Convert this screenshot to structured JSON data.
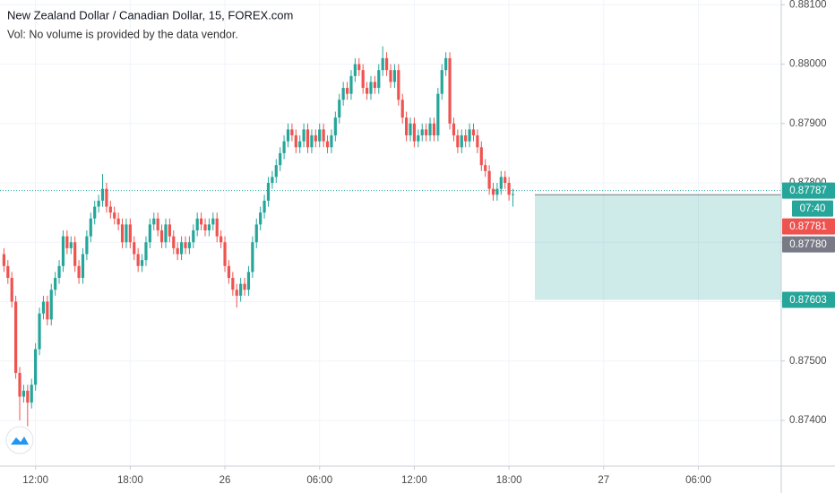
{
  "chart_data": {
    "type": "candlestick",
    "title": "New Zealand Dollar / Canadian Dollar, 15, FOREX.com",
    "subtitle": "Vol: No volume is provided by the data vendor.",
    "up_color": "#26a69a",
    "down_color": "#ef5350",
    "grid": true,
    "xlim": [
      -1,
      197
    ],
    "xticks": [
      {
        "value": 8,
        "label": "12:00"
      },
      {
        "value": 32,
        "label": "18:00"
      },
      {
        "value": 56,
        "label": "26"
      },
      {
        "value": 80,
        "label": "06:00"
      },
      {
        "value": 104,
        "label": "12:00"
      },
      {
        "value": 128,
        "label": "18:00"
      },
      {
        "value": 152,
        "label": "27"
      },
      {
        "value": 176,
        "label": "06:00"
      }
    ],
    "ylim": [
      0.87323,
      0.88108
    ],
    "yticks": [
      {
        "value": 0.874,
        "label": "0.87400"
      },
      {
        "value": 0.875,
        "label": "0.87500"
      },
      {
        "value": 0.876,
        "label": "0.87600"
      },
      {
        "value": 0.877,
        "label": "0.87700"
      },
      {
        "value": 0.878,
        "label": "0.87800"
      },
      {
        "value": 0.879,
        "label": "0.87900"
      },
      {
        "value": 0.88,
        "label": "0.88000"
      },
      {
        "value": 0.881,
        "label": "0.88100"
      }
    ],
    "candles": [
      [
        0.8768,
        0.8769,
        0.8765,
        0.8766
      ],
      [
        0.8766,
        0.8767,
        0.8763,
        0.8764
      ],
      [
        0.8764,
        0.8765,
        0.8759,
        0.876
      ],
      [
        0.876,
        0.8761,
        0.8747,
        0.8748
      ],
      [
        0.8748,
        0.8749,
        0.874,
        0.8744
      ],
      [
        0.8744,
        0.8746,
        0.8743,
        0.8745
      ],
      [
        0.8745,
        0.8746,
        0.8739,
        0.8743
      ],
      [
        0.8743,
        0.8747,
        0.8742,
        0.8746
      ],
      [
        0.8746,
        0.8753,
        0.8745,
        0.8752
      ],
      [
        0.8752,
        0.8759,
        0.8751,
        0.8758
      ],
      [
        0.8758,
        0.8761,
        0.8757,
        0.876
      ],
      [
        0.876,
        0.8761,
        0.8756,
        0.8757
      ],
      [
        0.8757,
        0.8763,
        0.8756,
        0.8762
      ],
      [
        0.8762,
        0.8765,
        0.8761,
        0.8764
      ],
      [
        0.8764,
        0.8767,
        0.8763,
        0.8766
      ],
      [
        0.8766,
        0.8772,
        0.8765,
        0.8771
      ],
      [
        0.8771,
        0.8772,
        0.8768,
        0.8769
      ],
      [
        0.8769,
        0.8771,
        0.8768,
        0.877
      ],
      [
        0.877,
        0.8771,
        0.8765,
        0.8766
      ],
      [
        0.8766,
        0.8767,
        0.8763,
        0.8764
      ],
      [
        0.8764,
        0.8769,
        0.8763,
        0.8768
      ],
      [
        0.8768,
        0.8772,
        0.8767,
        0.8771
      ],
      [
        0.8771,
        0.8775,
        0.877,
        0.8774
      ],
      [
        0.8774,
        0.8777,
        0.8773,
        0.8776
      ],
      [
        0.8776,
        0.8778,
        0.8775,
        0.8777
      ],
      [
        0.8777,
        0.87815,
        0.8776,
        0.8779
      ],
      [
        0.8779,
        0.878,
        0.8775,
        0.8776
      ],
      [
        0.8776,
        0.8777,
        0.8774,
        0.8775
      ],
      [
        0.8775,
        0.8776,
        0.8773,
        0.8774
      ],
      [
        0.8774,
        0.8775,
        0.8772,
        0.8773
      ],
      [
        0.8773,
        0.8774,
        0.8769,
        0.877
      ],
      [
        0.877,
        0.8774,
        0.8769,
        0.8773
      ],
      [
        0.8773,
        0.8774,
        0.8769,
        0.877
      ],
      [
        0.877,
        0.8771,
        0.8767,
        0.8768
      ],
      [
        0.8768,
        0.8769,
        0.8765,
        0.8766
      ],
      [
        0.8766,
        0.8768,
        0.8765,
        0.8767
      ],
      [
        0.8767,
        0.8771,
        0.8766,
        0.877
      ],
      [
        0.877,
        0.8774,
        0.8769,
        0.8773
      ],
      [
        0.8773,
        0.8775,
        0.8772,
        0.8774
      ],
      [
        0.8774,
        0.8775,
        0.8771,
        0.8772
      ],
      [
        0.8772,
        0.8773,
        0.8769,
        0.877
      ],
      [
        0.877,
        0.8774,
        0.8769,
        0.8773
      ],
      [
        0.8773,
        0.8774,
        0.877,
        0.8771
      ],
      [
        0.8771,
        0.8772,
        0.8768,
        0.8769
      ],
      [
        0.8769,
        0.877,
        0.8767,
        0.8768
      ],
      [
        0.8768,
        0.8771,
        0.8767,
        0.877
      ],
      [
        0.877,
        0.8771,
        0.8768,
        0.8769
      ],
      [
        0.8769,
        0.8771,
        0.8768,
        0.877
      ],
      [
        0.877,
        0.8773,
        0.8769,
        0.8772
      ],
      [
        0.8772,
        0.8775,
        0.8771,
        0.8774
      ],
      [
        0.8774,
        0.8775,
        0.8772,
        0.8773
      ],
      [
        0.8773,
        0.8774,
        0.8771,
        0.8772
      ],
      [
        0.8772,
        0.8774,
        0.8771,
        0.8773
      ],
      [
        0.8773,
        0.8775,
        0.8772,
        0.8774
      ],
      [
        0.8774,
        0.8775,
        0.877,
        0.8771
      ],
      [
        0.8771,
        0.8772,
        0.8769,
        0.877
      ],
      [
        0.877,
        0.8771,
        0.8765,
        0.8766
      ],
      [
        0.8766,
        0.8767,
        0.8763,
        0.8764
      ],
      [
        0.8764,
        0.8765,
        0.8761,
        0.8762
      ],
      [
        0.8762,
        0.8763,
        0.8759,
        0.8761
      ],
      [
        0.8761,
        0.8764,
        0.876,
        0.8763
      ],
      [
        0.8763,
        0.8764,
        0.8761,
        0.8762
      ],
      [
        0.8762,
        0.8766,
        0.8761,
        0.8765
      ],
      [
        0.8765,
        0.8771,
        0.8764,
        0.877
      ],
      [
        0.877,
        0.8774,
        0.8769,
        0.8773
      ],
      [
        0.8773,
        0.8776,
        0.8772,
        0.8775
      ],
      [
        0.8775,
        0.8778,
        0.8774,
        0.8777
      ],
      [
        0.8777,
        0.8781,
        0.8776,
        0.878
      ],
      [
        0.878,
        0.8782,
        0.8779,
        0.8781
      ],
      [
        0.8781,
        0.8784,
        0.878,
        0.8783
      ],
      [
        0.8783,
        0.8786,
        0.8782,
        0.8785
      ],
      [
        0.8785,
        0.8788,
        0.8784,
        0.8787
      ],
      [
        0.8787,
        0.879,
        0.8786,
        0.8789
      ],
      [
        0.8789,
        0.879,
        0.8787,
        0.8788
      ],
      [
        0.8788,
        0.8789,
        0.8785,
        0.8786
      ],
      [
        0.8786,
        0.8788,
        0.8785,
        0.8787
      ],
      [
        0.8787,
        0.879,
        0.8786,
        0.8789
      ],
      [
        0.8789,
        0.879,
        0.8785,
        0.8786
      ],
      [
        0.8786,
        0.8789,
        0.8785,
        0.8788
      ],
      [
        0.8788,
        0.8789,
        0.8786,
        0.8787
      ],
      [
        0.8787,
        0.879,
        0.8786,
        0.8789
      ],
      [
        0.8789,
        0.879,
        0.8786,
        0.8787
      ],
      [
        0.8787,
        0.8788,
        0.8785,
        0.8786
      ],
      [
        0.8786,
        0.8789,
        0.8785,
        0.8788
      ],
      [
        0.8788,
        0.8792,
        0.8787,
        0.8791
      ],
      [
        0.8791,
        0.8795,
        0.879,
        0.8794
      ],
      [
        0.8794,
        0.8797,
        0.8793,
        0.8796
      ],
      [
        0.8796,
        0.8797,
        0.8794,
        0.8795
      ],
      [
        0.8795,
        0.8799,
        0.8794,
        0.8798
      ],
      [
        0.8798,
        0.8801,
        0.8797,
        0.88
      ],
      [
        0.88,
        0.8801,
        0.8798,
        0.8799
      ],
      [
        0.8799,
        0.88,
        0.8795,
        0.8796
      ],
      [
        0.8796,
        0.8797,
        0.8794,
        0.8795
      ],
      [
        0.8795,
        0.8798,
        0.8794,
        0.8797
      ],
      [
        0.8797,
        0.8798,
        0.8795,
        0.8796
      ],
      [
        0.8796,
        0.88,
        0.8795,
        0.8799
      ],
      [
        0.8799,
        0.8803,
        0.8798,
        0.8801
      ],
      [
        0.8801,
        0.8802,
        0.8798,
        0.8799
      ],
      [
        0.8799,
        0.88,
        0.8796,
        0.8797
      ],
      [
        0.8797,
        0.88,
        0.8796,
        0.8799
      ],
      [
        0.8799,
        0.88,
        0.8793,
        0.8794
      ],
      [
        0.8794,
        0.8795,
        0.879,
        0.8791
      ],
      [
        0.8791,
        0.8792,
        0.8787,
        0.8788
      ],
      [
        0.8788,
        0.8791,
        0.8787,
        0.879
      ],
      [
        0.879,
        0.8791,
        0.8786,
        0.8787
      ],
      [
        0.8787,
        0.8789,
        0.8786,
        0.8788
      ],
      [
        0.8788,
        0.879,
        0.8787,
        0.8789
      ],
      [
        0.8789,
        0.879,
        0.8787,
        0.8788
      ],
      [
        0.8788,
        0.8791,
        0.8787,
        0.879
      ],
      [
        0.879,
        0.8791,
        0.8787,
        0.8788
      ],
      [
        0.8788,
        0.8796,
        0.8787,
        0.8795
      ],
      [
        0.8795,
        0.88,
        0.8794,
        0.8799
      ],
      [
        0.8799,
        0.8802,
        0.8798,
        0.8801
      ],
      [
        0.8801,
        0.8802,
        0.8789,
        0.879
      ],
      [
        0.879,
        0.8791,
        0.8787,
        0.8788
      ],
      [
        0.8788,
        0.8789,
        0.8785,
        0.8786
      ],
      [
        0.8786,
        0.8789,
        0.8785,
        0.8788
      ],
      [
        0.8788,
        0.8789,
        0.8786,
        0.8787
      ],
      [
        0.8787,
        0.879,
        0.8786,
        0.8789
      ],
      [
        0.8789,
        0.879,
        0.8787,
        0.8788
      ],
      [
        0.8788,
        0.8789,
        0.8785,
        0.8786
      ],
      [
        0.8786,
        0.8787,
        0.8782,
        0.8783
      ],
      [
        0.8783,
        0.8784,
        0.8781,
        0.8782
      ],
      [
        0.8782,
        0.8783,
        0.8778,
        0.8779
      ],
      [
        0.8779,
        0.878,
        0.8777,
        0.8778
      ],
      [
        0.8778,
        0.878,
        0.8777,
        0.8779
      ],
      [
        0.8779,
        0.8782,
        0.8778,
        0.8781
      ],
      [
        0.8781,
        0.8782,
        0.8779,
        0.878
      ],
      [
        0.878,
        0.8781,
        0.8777,
        0.8778
      ],
      [
        0.8778,
        0.8779,
        0.8776,
        0.87781
      ]
    ],
    "price_line": {
      "value": 0.87787,
      "color": "#26a69a"
    },
    "position_box": {
      "from": 0.8778,
      "to": 0.87603,
      "color": "#26a69a"
    },
    "countdown": "07:40",
    "price_labels": [
      {
        "value": 0.87787,
        "label": "0.87787",
        "color": "#26a69a"
      },
      {
        "value": 0.87781,
        "label": "0.87781",
        "color": "#ef5350"
      },
      {
        "value": 0.8778,
        "label": "0.87780",
        "color": "#787b86"
      },
      {
        "value": 0.87603,
        "label": "0.87603",
        "color": "#26a69a"
      }
    ]
  }
}
